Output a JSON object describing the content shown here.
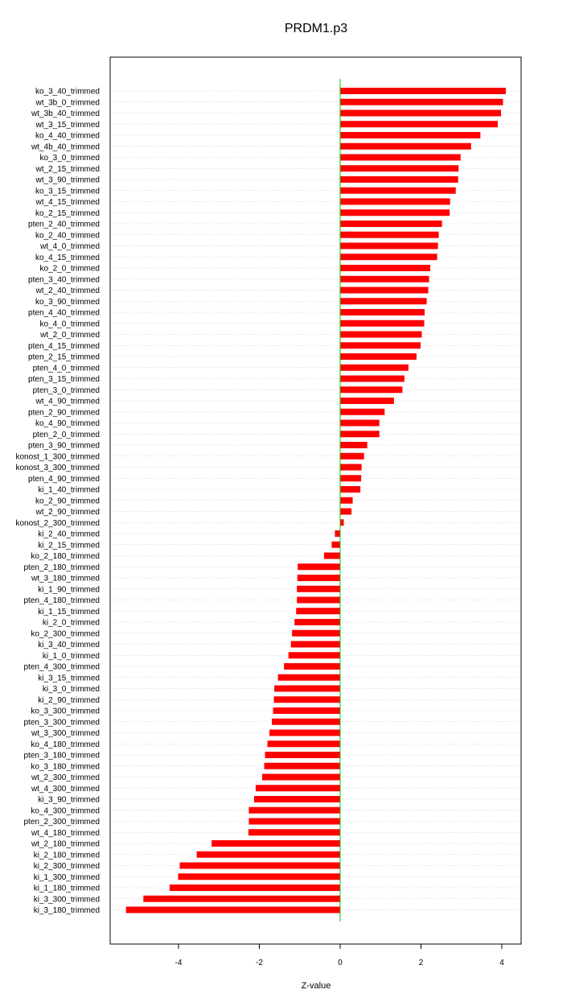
{
  "chart_data": {
    "type": "bar",
    "orientation": "horizontal",
    "title": "PRDM1.p3",
    "xlabel": "Z-value",
    "ylabel": "",
    "xlim": [
      -5.35,
      4.45
    ],
    "x_ticks": [
      -4,
      -2,
      0,
      2,
      4
    ],
    "x_tick_labels": [
      "-4",
      "-2",
      "0",
      "2",
      "4"
    ],
    "grid": "horizontal dotted lines at each category",
    "zero_line_color": "#00cc00",
    "bar_color": "#ff0000",
    "categories": [
      "ko_3_40_trimmed",
      "wt_3b_0_trimmed",
      "wt_3b_40_trimmed",
      "wt_3_15_trimmed",
      "ko_4_40_trimmed",
      "wt_4b_40_trimmed",
      "ko_3_0_trimmed",
      "wt_2_15_trimmed",
      "wt_3_90_trimmed",
      "ko_3_15_trimmed",
      "wt_4_15_trimmed",
      "ko_2_15_trimmed",
      "pten_2_40_trimmed",
      "ko_2_40_trimmed",
      "wt_4_0_trimmed",
      "ko_4_15_trimmed",
      "ko_2_0_trimmed",
      "pten_3_40_trimmed",
      "wt_2_40_trimmed",
      "ko_3_90_trimmed",
      "pten_4_40_trimmed",
      "ko_4_0_trimmed",
      "wt_2_0_trimmed",
      "pten_4_15_trimmed",
      "pten_2_15_trimmed",
      "pten_4_0_trimmed",
      "pten_3_15_trimmed",
      "pten_3_0_trimmed",
      "wt_4_90_trimmed",
      "pten_2_90_trimmed",
      "ko_4_90_trimmed",
      "pten_2_0_trimmed",
      "pten_3_90_trimmed",
      "konost_1_300_trimmed",
      "konost_3_300_trimmed",
      "pten_4_90_trimmed",
      "ki_1_40_trimmed",
      "ko_2_90_trimmed",
      "wt_2_90_trimmed",
      "konost_2_300_trimmed",
      "ki_2_40_trimmed",
      "ki_2_15_trimmed",
      "ko_2_180_trimmed",
      "pten_2_180_trimmed",
      "wt_3_180_trimmed",
      "ki_1_90_trimmed",
      "pten_4_180_trimmed",
      "ki_1_15_trimmed",
      "ki_2_0_trimmed",
      "ko_2_300_trimmed",
      "ki_3_40_trimmed",
      "ki_1_0_trimmed",
      "pten_4_300_trimmed",
      "ki_3_15_trimmed",
      "ki_3_0_trimmed",
      "ki_2_90_trimmed",
      "ko_3_300_trimmed",
      "pten_3_300_trimmed",
      "wt_3_300_trimmed",
      "ko_4_180_trimmed",
      "pten_3_180_trimmed",
      "ko_3_180_trimmed",
      "wt_2_300_trimmed",
      "wt_4_300_trimmed",
      "ki_3_90_trimmed",
      "ko_4_300_trimmed",
      "pten_2_300_trimmed",
      "wt_4_180_trimmed",
      "wt_2_180_trimmed",
      "ki_2_180_trimmed",
      "ki_2_300_trimmed",
      "ki_1_300_trimmed",
      "ki_1_180_trimmed",
      "ki_3_300_trimmed",
      "ki_3_180_trimmed"
    ],
    "values": [
      4.1,
      4.03,
      3.98,
      3.9,
      3.47,
      3.24,
      2.98,
      2.93,
      2.92,
      2.86,
      2.72,
      2.71,
      2.52,
      2.44,
      2.42,
      2.4,
      2.23,
      2.2,
      2.18,
      2.14,
      2.09,
      2.08,
      2.02,
      1.99,
      1.89,
      1.69,
      1.59,
      1.54,
      1.33,
      1.1,
      0.97,
      0.97,
      0.67,
      0.59,
      0.53,
      0.52,
      0.5,
      0.31,
      0.28,
      0.09,
      -0.13,
      -0.21,
      -0.4,
      -1.05,
      -1.06,
      -1.07,
      -1.07,
      -1.09,
      -1.13,
      -1.19,
      -1.22,
      -1.28,
      -1.39,
      -1.54,
      -1.63,
      -1.64,
      -1.66,
      -1.69,
      -1.75,
      -1.8,
      -1.86,
      -1.88,
      -1.93,
      -2.09,
      -2.13,
      -2.26,
      -2.26,
      -2.27,
      -3.18,
      -3.55,
      -3.97,
      -4.01,
      -4.22,
      -4.87,
      -5.3
    ]
  }
}
